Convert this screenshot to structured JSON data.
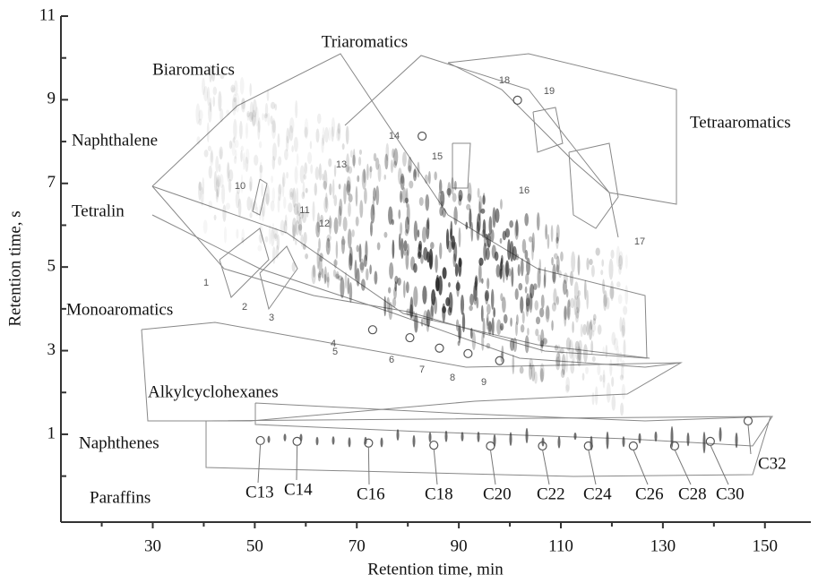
{
  "chart_data": {
    "type": "scatter",
    "x_label": "Retention time, min",
    "y_label": "Retention time, s",
    "xlim": [
      12,
      159
    ],
    "ylim": [
      -1.1,
      11
    ],
    "xticks": [
      30,
      50,
      70,
      90,
      110,
      130,
      150
    ],
    "yticks": [
      1,
      3,
      5,
      7,
      9,
      11
    ],
    "series": [
      {
        "color": "#555555",
        "x": [
          51.1,
          58.3,
          72.3,
          85.1,
          96.2,
          106.4,
          115.4,
          124.2,
          132.3,
          139.3,
          146.7
        ],
        "values": [
          0.85,
          0.83,
          0.79,
          0.74,
          0.72,
          0.72,
          0.72,
          0.72,
          0.72,
          0.83,
          1.32
        ],
        "point_labels": [
          "C13",
          "C14",
          "C16",
          "C18",
          "C20",
          "C22",
          "C24",
          "C26",
          "C28",
          "C30",
          "C32"
        ]
      },
      {
        "color": "#555555",
        "x": [
          73.1,
          80.4,
          86.2,
          91.8,
          98.0,
          82.8,
          101.5
        ],
        "values": [
          3.5,
          3.31,
          3.06,
          2.93,
          2.76,
          8.13,
          8.99
        ]
      }
    ],
    "group_labels": [
      "Triaromatics",
      "Biaromatics",
      "Naphthalene",
      "Tetralin",
      "Monoaromatics",
      "Alkylcyclohexanes",
      "Naphthenes",
      "Paraffins",
      "Tetraaromatics"
    ],
    "peak_labels": [
      "1",
      "2",
      "3",
      "4",
      "5",
      "6",
      "7",
      "8",
      "9",
      "10",
      "11",
      "12",
      "13",
      "14",
      "15",
      "16",
      "17",
      "18",
      "19"
    ]
  }
}
